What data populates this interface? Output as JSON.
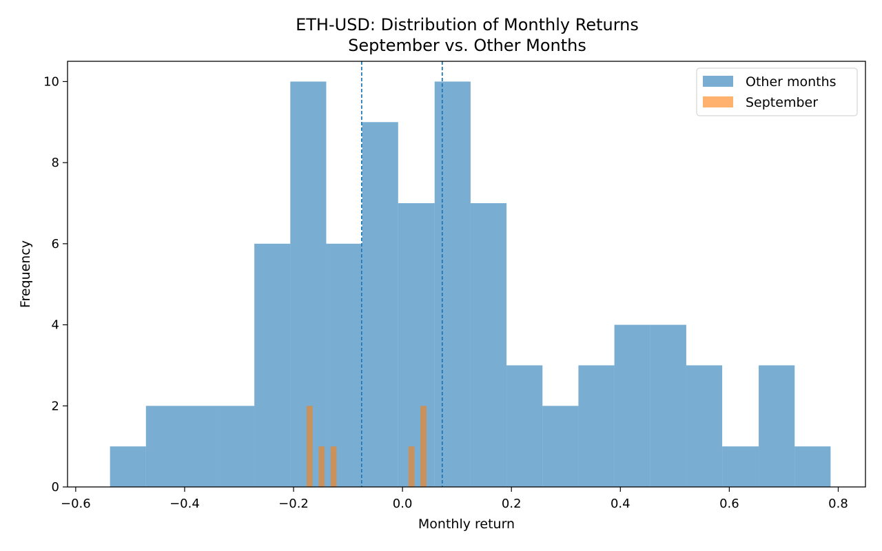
{
  "chart_data": {
    "type": "bar",
    "title": "ETH-USD: Distribution of Monthly Returns",
    "subtitle": "September vs. Other Months",
    "xlabel": "Monthly return",
    "ylabel": "Frequency",
    "xlim": [
      -0.615,
      0.85
    ],
    "ylim": [
      0,
      10.5
    ],
    "x_ticks": [
      -0.6,
      -0.4,
      -0.2,
      0.0,
      0.2,
      0.4,
      0.6,
      0.8
    ],
    "x_tick_labels": [
      "−0.6",
      "−0.4",
      "−0.2",
      "0.0",
      "0.2",
      "0.4",
      "0.6",
      "0.8"
    ],
    "y_ticks": [
      0,
      2,
      4,
      6,
      8,
      10
    ],
    "y_tick_labels": [
      "0",
      "2",
      "4",
      "6",
      "8",
      "10"
    ],
    "legend_position": "top-right",
    "series": [
      {
        "name": "Other months",
        "color": "#1f77b4",
        "alpha": 0.6,
        "bin_edges": [
          -0.537,
          -0.471,
          -0.405,
          -0.338,
          -0.272,
          -0.206,
          -0.14,
          -0.074,
          -0.008,
          0.059,
          0.125,
          0.191,
          0.257,
          0.323,
          0.389,
          0.455,
          0.521,
          0.587,
          0.654,
          0.72,
          0.786
        ],
        "counts": [
          1,
          2,
          2,
          2,
          6,
          10,
          6,
          9,
          7,
          10,
          7,
          3,
          2,
          3,
          4,
          4,
          3,
          1,
          3,
          1
        ]
      },
      {
        "name": "September",
        "color": "#ff7f0e",
        "alpha": 0.6,
        "bin_edges": [
          -0.176,
          -0.165,
          -0.154,
          -0.143,
          -0.132,
          -0.121,
          -0.11,
          -0.099,
          -0.088,
          -0.077,
          -0.066,
          -0.055,
          -0.044,
          -0.033,
          -0.022,
          -0.011,
          0.0,
          0.011,
          0.022,
          0.033,
          0.044
        ],
        "counts": [
          2,
          0,
          1,
          0,
          1,
          0,
          0,
          0,
          0,
          0,
          0,
          0,
          0,
          0,
          0,
          0,
          0,
          1,
          0,
          2
        ]
      }
    ],
    "reference_lines": [
      {
        "x": -0.075,
        "style": "dashed",
        "color": "#1f77b4"
      },
      {
        "x": 0.073,
        "style": "dashed",
        "color": "#1f77b4"
      }
    ]
  }
}
